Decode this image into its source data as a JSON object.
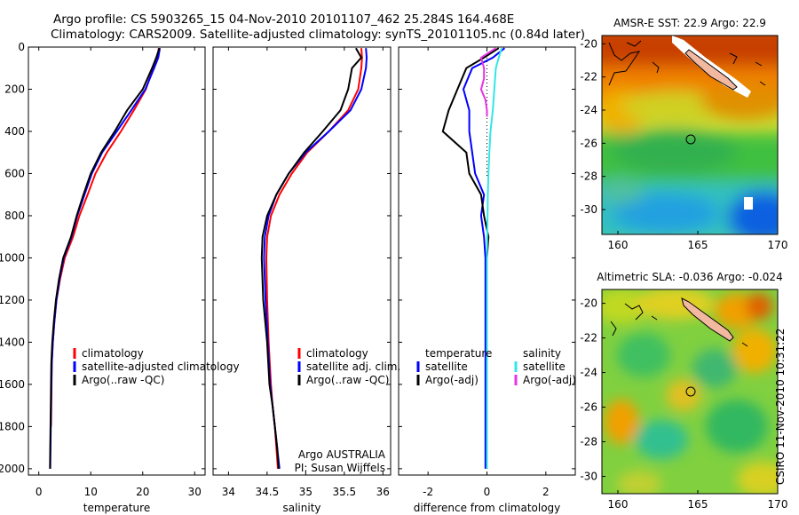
{
  "header": {
    "line1": "Argo profile: CS 5903265_15 04-Nov-2010 20101107_462 25.284S 164.468E",
    "line2": "Climatology: CARS2009. Satellite-adjusted climatology: synTS_20101105.nc (0.84d later)"
  },
  "credit": "CSIRO 11-Nov-2010 10:31:22",
  "chart_data": [
    {
      "type": "line",
      "panel": "temperature",
      "xlabel": "temperature",
      "ylabel": "",
      "xlim": [
        -2,
        32
      ],
      "ylim": [
        2030,
        0
      ],
      "xticks": [
        0,
        10,
        20,
        30
      ],
      "yticks": [
        0,
        200,
        400,
        600,
        800,
        1000,
        1200,
        1400,
        1600,
        1800,
        2000
      ],
      "legend": {
        "placement": "lower-right",
        "entries": [
          {
            "label": "climatology",
            "color": "#ff0000"
          },
          {
            "label": "satellite-adjusted climatology",
            "color": "#0000ff"
          },
          {
            "label": "Argo(..raw -QC)",
            "color": "#000000"
          }
        ]
      },
      "series": [
        {
          "name": "climatology",
          "color": "#ff0000",
          "x": [
            23.1,
            22.8,
            22.0,
            20.6,
            18.3,
            15.8,
            13.1,
            10.9,
            9.4,
            7.8,
            6.6,
            5.0,
            4.1,
            3.4,
            3.0,
            2.7,
            2.5,
            2.4,
            2.35
          ],
          "y": [
            5,
            50,
            100,
            200,
            300,
            400,
            500,
            600,
            700,
            800,
            900,
            1000,
            1100,
            1200,
            1300,
            1400,
            1500,
            1700,
            1800
          ]
        },
        {
          "name": "satellite-adjusted climatology",
          "color": "#0000ff",
          "x": [
            23.3,
            23.0,
            22.2,
            20.5,
            17.8,
            15.0,
            12.2,
            10.2,
            8.8,
            7.4,
            6.3,
            4.8,
            4.0,
            3.4,
            3.0,
            2.7,
            2.5,
            2.35,
            2.25,
            2.2
          ],
          "y": [
            5,
            50,
            100,
            200,
            300,
            400,
            500,
            600,
            700,
            800,
            900,
            1000,
            1100,
            1200,
            1300,
            1400,
            1500,
            1700,
            1900,
            2000
          ]
        },
        {
          "name": "Argo(..raw -QC)",
          "color": "#000000",
          "x": [
            23.2,
            22.6,
            21.8,
            20.0,
            17.0,
            14.6,
            12.0,
            10.0,
            8.6,
            7.3,
            6.2,
            4.7,
            3.9,
            3.3,
            2.9,
            2.6,
            2.4,
            2.3,
            2.2,
            2.15
          ],
          "y": [
            5,
            50,
            100,
            200,
            300,
            400,
            500,
            600,
            700,
            800,
            900,
            1000,
            1100,
            1200,
            1300,
            1400,
            1500,
            1700,
            1900,
            2000
          ]
        }
      ]
    },
    {
      "type": "line",
      "panel": "salinity",
      "xlabel": "salinity",
      "ylabel": "",
      "xlim": [
        33.8,
        36.1
      ],
      "ylim": [
        2030,
        0
      ],
      "xticks": [
        34,
        34.5,
        35,
        35.5,
        36
      ],
      "xticklabels": [
        "34",
        "34.5",
        "35",
        "35.5",
        "36"
      ],
      "legend": {
        "placement": "lower-right",
        "entries": [
          {
            "label": "climatology",
            "color": "#ff0000"
          },
          {
            "label": "satellite adj. clim.",
            "color": "#0000ff"
          },
          {
            "label": "Argo(..raw -QC)",
            "color": "#000000"
          }
        ]
      },
      "annotation": {
        "line1": "Argo AUSTRALIA",
        "line2": "PI: Susan Wijffels"
      },
      "series": [
        {
          "name": "climatology",
          "color": "#ff0000",
          "x": [
            35.72,
            35.73,
            35.72,
            35.68,
            35.55,
            35.3,
            35.02,
            34.82,
            34.66,
            34.55,
            34.5,
            34.49,
            34.5,
            34.52,
            34.55,
            34.57,
            34.6,
            34.62,
            34.64
          ],
          "y": [
            5,
            50,
            100,
            200,
            300,
            400,
            500,
            600,
            700,
            800,
            900,
            1000,
            1200,
            1400,
            1600,
            1700,
            1800,
            1900,
            2000
          ]
        },
        {
          "name": "satellite-adjusted climatology",
          "color": "#0000ff",
          "x": [
            35.78,
            35.79,
            35.78,
            35.72,
            35.58,
            35.3,
            35.0,
            34.78,
            34.62,
            34.52,
            34.47,
            34.46,
            34.48,
            34.51,
            34.54,
            34.57,
            34.6,
            34.63,
            34.66
          ],
          "y": [
            5,
            50,
            100,
            200,
            300,
            400,
            500,
            600,
            700,
            800,
            900,
            1000,
            1200,
            1400,
            1600,
            1700,
            1800,
            1900,
            2000
          ]
        },
        {
          "name": "Argo(..raw -QC)",
          "color": "#000000",
          "x": [
            35.65,
            35.72,
            35.6,
            35.55,
            35.45,
            35.22,
            34.98,
            34.78,
            34.62,
            34.5,
            34.44,
            34.43,
            34.45,
            34.5,
            34.53,
            34.57,
            34.6,
            34.63,
            34.65
          ],
          "y": [
            5,
            50,
            100,
            200,
            300,
            400,
            500,
            600,
            700,
            800,
            900,
            1000,
            1200,
            1400,
            1600,
            1700,
            1800,
            1900,
            2000
          ]
        }
      ]
    },
    {
      "type": "line",
      "panel": "difference",
      "xlabel": "difference from climatology",
      "ylabel": "",
      "xlim": [
        -3,
        3
      ],
      "ylim": [
        2030,
        0
      ],
      "xticks": [
        -2,
        0,
        2
      ],
      "reference_line": {
        "x": 0,
        "style": "dotted"
      },
      "legend": {
        "placement": "lower-center",
        "groups": [
          {
            "title": "temperature",
            "entries": [
              {
                "label": "satellite",
                "color": "#0000ff"
              },
              {
                "label": "Argo(-adj)",
                "color": "#000000"
              }
            ]
          },
          {
            "title": "salinity",
            "entries": [
              {
                "label": "satellite",
                "color": "#33e6e6"
              },
              {
                "label": "Argo(-adj)",
                "color": "#e633e6"
              }
            ]
          }
        ]
      },
      "series": [
        {
          "name": "temperature satellite",
          "color": "#0000ff",
          "x": [
            0.6,
            0.2,
            -0.5,
            -0.8,
            -0.6,
            -0.6,
            -0.5,
            -0.4,
            -0.1,
            -0.2,
            -0.1,
            -0.05,
            -0.05,
            -0.05,
            -0.05,
            -0.05,
            -0.05
          ],
          "y": [
            5,
            50,
            100,
            200,
            300,
            400,
            500,
            600,
            700,
            800,
            900,
            1000,
            1200,
            1400,
            1600,
            1800,
            2000
          ]
        },
        {
          "name": "temperature Argo(-adj)",
          "color": "#000000",
          "x": [
            0.4,
            -0.1,
            -0.7,
            -1.0,
            -1.3,
            -1.5,
            -0.7,
            -0.6,
            -0.2,
            -0.1,
            0.05,
            0.0,
            0.0,
            0.0,
            0.0,
            0.0,
            0.0
          ],
          "y": [
            5,
            50,
            100,
            200,
            300,
            400,
            500,
            600,
            700,
            800,
            900,
            1000,
            1200,
            1400,
            1600,
            1800,
            2000
          ]
        },
        {
          "name": "salinity satellite",
          "color": "#33e6e6",
          "x": [
            0.5,
            0.4,
            0.3,
            0.25,
            0.2,
            0.12,
            0.08,
            0.05,
            0.03,
            0.02,
            0.01,
            0.0,
            0.0,
            0.0,
            0.0
          ],
          "y": [
            5,
            50,
            100,
            200,
            300,
            400,
            500,
            600,
            700,
            800,
            900,
            1000,
            1200,
            1600,
            2000
          ]
        },
        {
          "name": "salinity Argo(-adj)",
          "color": "#e633e6",
          "x": [
            0.3,
            -0.2,
            -0.1,
            -0.1,
            -0.2,
            -0.05,
            0.0,
            0.0
          ],
          "y": [
            5,
            50,
            100,
            150,
            200,
            250,
            300,
            330
          ]
        }
      ]
    },
    {
      "type": "heatmap",
      "panel": "AMSR-E SST",
      "title": "AMSR-E SST: 22.9 Argo: 22.9",
      "xlim": [
        159,
        170
      ],
      "ylim": [
        -31.5,
        -19.5
      ],
      "xticks": [
        160,
        165,
        170
      ],
      "yticks": [
        -20,
        -22,
        -24,
        -26,
        -28,
        -30
      ],
      "argo_position": {
        "lon": 164.468,
        "lat": -25.284
      }
    },
    {
      "type": "heatmap",
      "panel": "Altimetric SLA",
      "title": "Altimetric SLA: -0.036 Argo: -0.024",
      "xlim": [
        159,
        170
      ],
      "ylim": [
        -31,
        -19.2
      ],
      "xticks": [
        160,
        165,
        170
      ],
      "yticks": [
        -20,
        -22,
        -24,
        -26,
        -28,
        -30
      ],
      "argo_position": {
        "lon": 164.468,
        "lat": -25.284
      }
    }
  ]
}
